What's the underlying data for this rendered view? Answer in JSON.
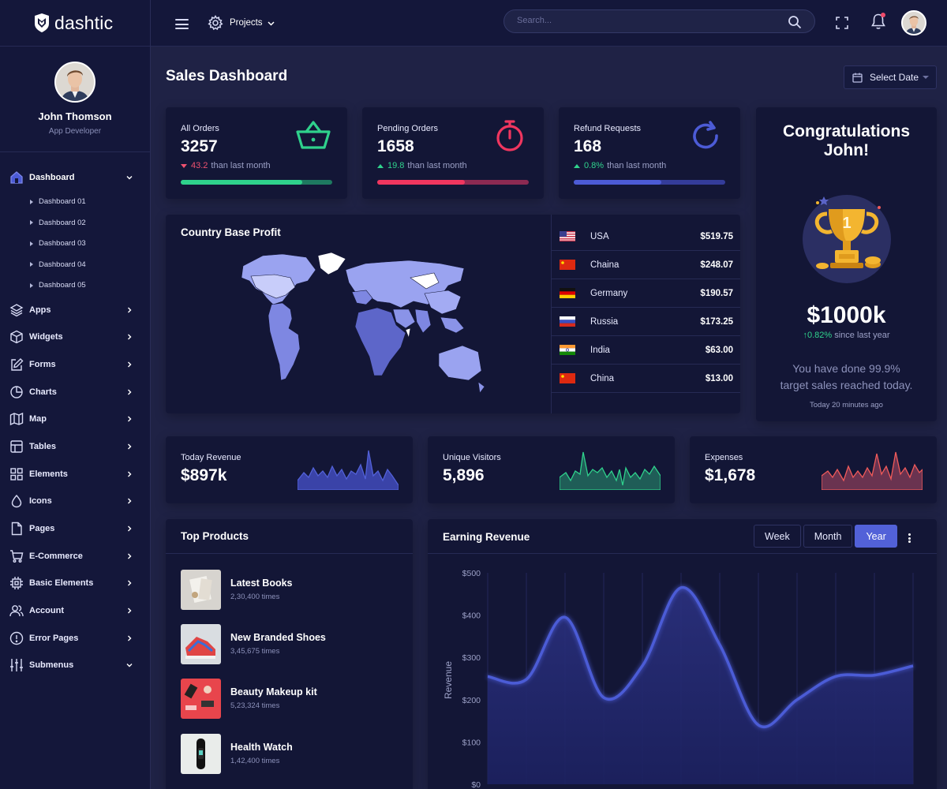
{
  "brand": {
    "name": "dashtic"
  },
  "profile": {
    "name": "John Thomson",
    "role": "App Developer"
  },
  "sidebar": {
    "dashboard": {
      "label": "Dashboard",
      "icon": "home-icon"
    },
    "submenu": [
      "Dashboard 01",
      "Dashboard 02",
      "Dashboard 03",
      "Dashboard 04",
      "Dashboard 05"
    ],
    "items": [
      {
        "label": "Apps",
        "icon": "layers-icon"
      },
      {
        "label": "Widgets",
        "icon": "box-icon"
      },
      {
        "label": "Forms",
        "icon": "edit-icon"
      },
      {
        "label": "Charts",
        "icon": "pie-chart-icon"
      },
      {
        "label": "Map",
        "icon": "map-icon"
      },
      {
        "label": "Tables",
        "icon": "table-icon"
      },
      {
        "label": "Elements",
        "icon": "grid-icon"
      },
      {
        "label": "Icons",
        "icon": "droplet-icon"
      },
      {
        "label": "Pages",
        "icon": "file-icon"
      },
      {
        "label": "E-Commerce",
        "icon": "cart-icon"
      },
      {
        "label": "Basic Elements",
        "icon": "chip-icon"
      },
      {
        "label": "Account",
        "icon": "users-icon"
      },
      {
        "label": "Error Pages",
        "icon": "alert-icon"
      },
      {
        "label": "Submenus",
        "icon": "sliders-icon"
      }
    ]
  },
  "header": {
    "projects_label": "Projects",
    "search_placeholder": "Search..."
  },
  "page": {
    "title": "Sales Dashboard",
    "select_date": "Select Date"
  },
  "stats": [
    {
      "label": "All Orders",
      "value": "3257",
      "change": "43.2",
      "change_text": "than last month",
      "direction": "down",
      "progress": 0.8,
      "color": "#2fd18c",
      "track": "#1e7960"
    },
    {
      "label": "Pending Orders",
      "value": "1658",
      "change": "19.8",
      "change_text": "than last month",
      "direction": "up",
      "progress": 0.58,
      "color": "#f0365f",
      "track": "#8c2a52"
    },
    {
      "label": "Refund Requests",
      "value": "168",
      "change": "0.8%",
      "change_text": "than last month",
      "direction": "up",
      "progress": 0.58,
      "color": "#4c5bd6",
      "track": "#343c9a"
    }
  ],
  "country": {
    "title": "Country Base Profit",
    "rows": [
      {
        "name": "USA",
        "value": "$519.75",
        "flag": "us"
      },
      {
        "name": "Chaina",
        "value": "$248.07",
        "flag": "cn"
      },
      {
        "name": "Germany",
        "value": "$190.57",
        "flag": "de"
      },
      {
        "name": "Russia",
        "value": "$173.25",
        "flag": "ru"
      },
      {
        "name": "India",
        "value": "$63.00",
        "flag": "in"
      },
      {
        "name": "China",
        "value": "$13.00",
        "flag": "cn"
      }
    ]
  },
  "congrats": {
    "title_line1": "Congratulations",
    "title_line2": "John!",
    "trophy_number": "1",
    "amount": "$1000k",
    "growth": "0.82%",
    "growth_text": "since last year",
    "message": "You have done 99.9% target sales reached today.",
    "time": "Today 20 minutes ago"
  },
  "mini_stats": [
    {
      "label": "Today Revenue",
      "value": "$897k",
      "color": "#5261d8"
    },
    {
      "label": "Unique Visitors",
      "value": "5,896",
      "color": "#2fd18c"
    },
    {
      "label": "Expenses",
      "value": "$1,678",
      "color": "#f05a5a"
    }
  ],
  "top_products": {
    "title": "Top Products",
    "items": [
      {
        "name": "Latest Books",
        "count": "2,30,400 times"
      },
      {
        "name": "New Branded Shoes",
        "count": "3,45,675 times"
      },
      {
        "name": "Beauty Makeup kit",
        "count": "5,23,324 times"
      },
      {
        "name": "Health Watch",
        "count": "1,42,400 times"
      }
    ]
  },
  "earning": {
    "title": "Earning Revenue",
    "tabs": [
      "Week",
      "Month",
      "Year"
    ],
    "active_tab": "Year"
  },
  "chart_data": {
    "type": "area",
    "ylabel": "Revenue",
    "ylim": [
      0,
      500
    ],
    "yticks": [
      "$0",
      "$100",
      "$200",
      "$300",
      "$400",
      "$500"
    ],
    "x": [
      0,
      1,
      2,
      3,
      4,
      5,
      6,
      7,
      8,
      9,
      10,
      11
    ],
    "series": [
      {
        "values": [
          255,
          248,
          395,
          205,
          280,
          465,
          330,
          140,
          200,
          255,
          258,
          280
        ]
      }
    ],
    "grid": true,
    "color": "#4c5bd6"
  }
}
